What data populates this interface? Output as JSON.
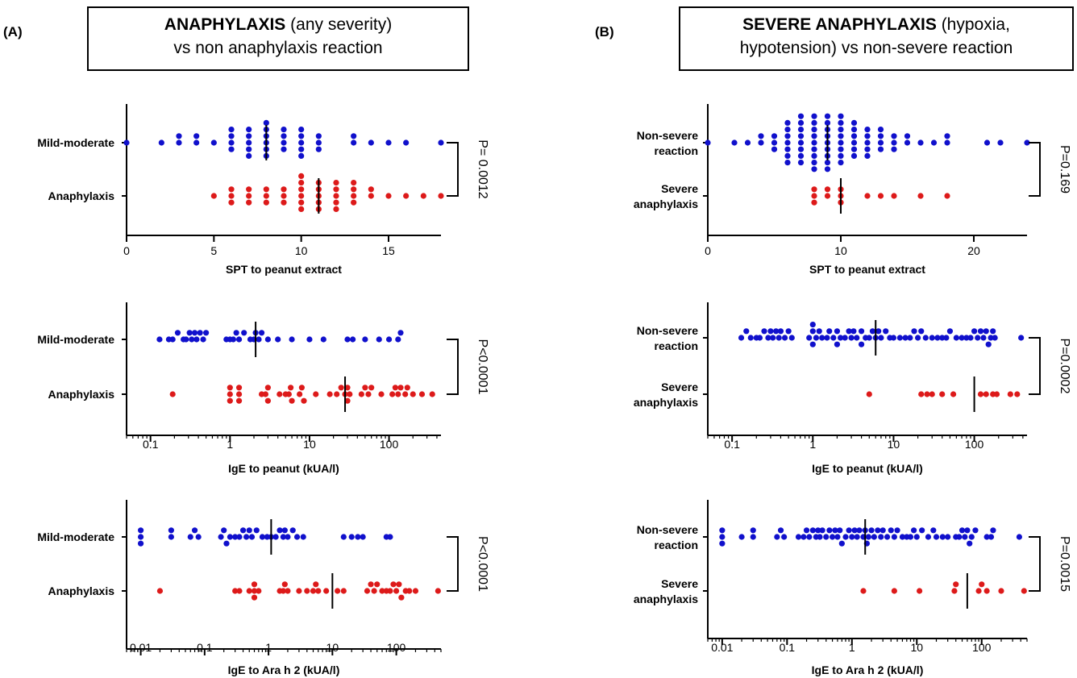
{
  "panels": [
    {
      "label": "(A)",
      "title_bold": "ANAPHYLAXIS",
      "title_rest": " (any severity)",
      "title_line2": "vs non anaphylaxis reaction"
    },
    {
      "label": "(B)",
      "title_bold": "SEVERE ANAPHYLAXIS",
      "title_rest": " (hypoxia,",
      "title_line2": "hypotension) vs non-severe reaction"
    }
  ],
  "colors": {
    "group_top": "#1010cc",
    "group_bottom": "#dd1a1a",
    "axis": "#000000"
  },
  "chart_data": [
    {
      "type": "scatter",
      "panel": "A",
      "xlabel": "SPT to peanut extract",
      "xscale": "linear",
      "xlim": [
        0,
        18
      ],
      "xticks": [
        0,
        5,
        10,
        15
      ],
      "p_value": "P= 0.0012",
      "groups": [
        {
          "name": "Mild-moderate",
          "color": "#1010cc",
          "median": 8,
          "values": [
            0,
            2,
            3,
            3,
            4,
            4,
            5,
            6,
            6,
            6,
            6,
            7,
            7,
            7,
            7,
            7,
            8,
            8,
            8,
            8,
            8,
            8,
            9,
            9,
            9,
            9,
            10,
            10,
            10,
            10,
            10,
            11,
            11,
            11,
            13,
            13,
            14,
            15,
            16,
            18
          ]
        },
        {
          "name": "Anaphylaxis",
          "color": "#dd1a1a",
          "median": 11,
          "values": [
            5,
            6,
            6,
            6,
            7,
            7,
            7,
            8,
            8,
            8,
            9,
            9,
            9,
            10,
            10,
            10,
            10,
            10,
            10,
            11,
            11,
            11,
            11,
            11,
            12,
            12,
            12,
            12,
            12,
            13,
            13,
            13,
            13,
            14,
            14,
            15,
            16,
            17,
            18
          ]
        }
      ]
    },
    {
      "type": "scatter",
      "panel": "A",
      "xlabel": "IgE to peanut (kUA/l)",
      "xscale": "log",
      "xlim": [
        0.05,
        450
      ],
      "xticks": [
        "0.1",
        "1",
        "10",
        "100"
      ],
      "p_value": "P<0.0001",
      "groups": [
        {
          "name": "Mild-moderate",
          "color": "#1010cc",
          "median": 2.1,
          "values": [
            0.13,
            0.17,
            0.19,
            0.22,
            0.26,
            0.28,
            0.31,
            0.33,
            0.36,
            0.38,
            0.42,
            0.46,
            0.5,
            0.9,
            1,
            1.1,
            1.2,
            1.3,
            1.5,
            1.8,
            2,
            2.1,
            2.3,
            2.5,
            3,
            4,
            6,
            10,
            15,
            30,
            35,
            50,
            75,
            100,
            130,
            140
          ]
        },
        {
          "name": "Anaphylaxis",
          "color": "#dd1a1a",
          "median": 28,
          "values": [
            0.19,
            1,
            1,
            1,
            1.3,
            1.3,
            1.3,
            2.5,
            2.8,
            3,
            3,
            4.2,
            5,
            5.5,
            5.8,
            6,
            7.5,
            8,
            8.5,
            12,
            18,
            22,
            25,
            28,
            30,
            30,
            32,
            45,
            50,
            55,
            60,
            80,
            110,
            120,
            130,
            140,
            160,
            170,
            200,
            260,
            350
          ]
        }
      ]
    },
    {
      "type": "scatter",
      "panel": "A",
      "xlabel": "IgE to Ara h 2 (kUA/l)",
      "xscale": "log",
      "xlim": [
        0.006,
        500
      ],
      "xticks": [
        "0.01",
        "0.1",
        "1",
        "10",
        "100"
      ],
      "p_value": "P<0.0001",
      "groups": [
        {
          "name": "Mild-moderate",
          "color": "#1010cc",
          "median": 1.1,
          "values": [
            0.01,
            0.01,
            0.01,
            0.03,
            0.03,
            0.06,
            0.07,
            0.08,
            0.18,
            0.2,
            0.22,
            0.25,
            0.3,
            0.35,
            0.4,
            0.45,
            0.5,
            0.55,
            0.65,
            0.8,
            0.95,
            1.1,
            1.3,
            1.5,
            1.7,
            1.8,
            2,
            2.4,
            2.8,
            3.5,
            15,
            20,
            25,
            30,
            70,
            80
          ]
        },
        {
          "name": "Anaphylaxis",
          "color": "#dd1a1a",
          "median": 10,
          "values": [
            0.02,
            0.3,
            0.35,
            0.5,
            0.6,
            0.6,
            0.6,
            0.7,
            1.5,
            1.7,
            1.8,
            2,
            3,
            4,
            5,
            5.5,
            6,
            8,
            12,
            15,
            35,
            40,
            45,
            50,
            60,
            70,
            80,
            90,
            100,
            110,
            120,
            140,
            160,
            200,
            450
          ]
        }
      ]
    },
    {
      "type": "scatter",
      "panel": "B",
      "xlabel": "SPT to peanut extract",
      "xscale": "linear",
      "xlim": [
        0,
        24
      ],
      "xticks": [
        0,
        10,
        20
      ],
      "p_value": "P=0.169",
      "groups": [
        {
          "name": "Non-severe reaction",
          "color": "#1010cc",
          "median": 9,
          "values": [
            0,
            2,
            3,
            4,
            4,
            5,
            5,
            5,
            6,
            6,
            6,
            6,
            6,
            6,
            6,
            7,
            7,
            7,
            7,
            7,
            7,
            7,
            7,
            8,
            8,
            8,
            8,
            8,
            8,
            8,
            8,
            8,
            9,
            9,
            9,
            9,
            9,
            9,
            9,
            9,
            9,
            10,
            10,
            10,
            10,
            10,
            10,
            10,
            10,
            11,
            11,
            11,
            11,
            11,
            11,
            12,
            12,
            12,
            12,
            12,
            13,
            13,
            13,
            13,
            14,
            14,
            14,
            15,
            15,
            16,
            17,
            18,
            18,
            21,
            22,
            24
          ]
        },
        {
          "name": "Severe anaphylaxis",
          "color": "#dd1a1a",
          "median": 10,
          "values": [
            8,
            8,
            8,
            9,
            9,
            10,
            10,
            10,
            12,
            13,
            14,
            16,
            18
          ]
        }
      ]
    },
    {
      "type": "scatter",
      "panel": "B",
      "xlabel": "IgE to peanut (kUA/l)",
      "xscale": "log",
      "xlim": [
        0.05,
        450
      ],
      "xticks": [
        "0.1",
        "1",
        "10",
        "100"
      ],
      "p_value": "P=0.0002",
      "groups": [
        {
          "name": "Non-severe reaction",
          "color": "#1010cc",
          "median": 6,
          "values": [
            0.13,
            0.15,
            0.17,
            0.2,
            0.22,
            0.25,
            0.28,
            0.3,
            0.32,
            0.35,
            0.38,
            0.4,
            0.45,
            0.5,
            0.55,
            0.9,
            1,
            1,
            1,
            1.1,
            1.2,
            1.3,
            1.5,
            1.6,
            1.8,
            2,
            2,
            2.2,
            2.5,
            2.8,
            3,
            3.2,
            3.5,
            4,
            4,
            4.5,
            5,
            5.5,
            6,
            6.5,
            7,
            8,
            9,
            10,
            12,
            14,
            16,
            18,
            20,
            22,
            25,
            30,
            35,
            40,
            45,
            50,
            60,
            70,
            80,
            90,
            100,
            110,
            120,
            130,
            140,
            150,
            160,
            170,
            180,
            380
          ]
        },
        {
          "name": "Severe anaphylaxis",
          "color": "#dd1a1a",
          "median": 100,
          "values": [
            5,
            22,
            26,
            30,
            40,
            55,
            120,
            140,
            170,
            190,
            280,
            340
          ]
        }
      ]
    },
    {
      "type": "scatter",
      "panel": "B",
      "xlabel": "IgE to Ara h 2 (kUA/l)",
      "xscale": "log",
      "xlim": [
        0.006,
        500
      ],
      "xticks": [
        "0.01",
        "0.1",
        "1",
        "10",
        "100"
      ],
      "p_value": "P=0.0015",
      "groups": [
        {
          "name": "Non-severe reaction",
          "color": "#1010cc",
          "median": 1.6,
          "values": [
            0.01,
            0.01,
            0.01,
            0.02,
            0.03,
            0.03,
            0.07,
            0.08,
            0.09,
            0.15,
            0.18,
            0.2,
            0.22,
            0.25,
            0.28,
            0.3,
            0.32,
            0.35,
            0.4,
            0.45,
            0.5,
            0.55,
            0.6,
            0.65,
            0.7,
            0.8,
            0.9,
            1,
            1.1,
            1.2,
            1.3,
            1.5,
            1.6,
            1.7,
            1.8,
            2,
            2.2,
            2.5,
            2.8,
            3,
            3.5,
            4,
            4.5,
            5,
            6,
            7,
            8,
            9,
            10,
            12,
            15,
            18,
            20,
            25,
            30,
            40,
            45,
            50,
            55,
            60,
            65,
            70,
            80,
            120,
            140,
            150,
            380
          ]
        },
        {
          "name": "Severe anaphylaxis",
          "color": "#dd1a1a",
          "median": 60,
          "values": [
            1.5,
            4.5,
            11,
            38,
            40,
            90,
            100,
            120,
            200,
            450
          ]
        }
      ]
    }
  ]
}
